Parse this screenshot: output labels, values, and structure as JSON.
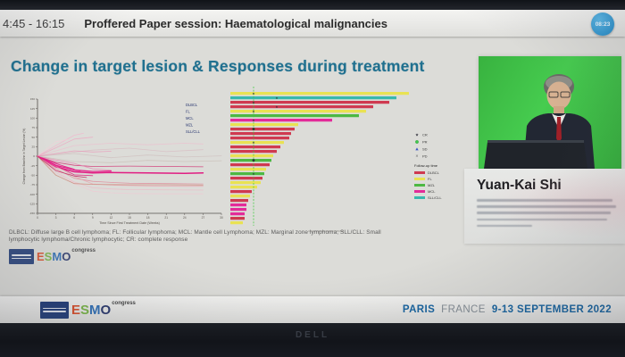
{
  "top_bar": {
    "time_range": "4:45 - 16:15",
    "session_title": "Proffered Paper session: Haematological malignancies",
    "timer_badge": "08:23"
  },
  "slide": {
    "title": "Change in target lesion & Responses during treatment",
    "footnote_line1": "DLBCL: Diffuse large B cell lymphoma; FL: Follicular lymphoma; MCL: Mantle cell Lymphoma; MZL: Marginal zone lymphoma; SLL/CLL: Small",
    "footnote_line2": "lymphocytic lymphoma/Chronic lymphocytic;   CR: complete response"
  },
  "speaker": {
    "name": "Yuan-Kai Shi"
  },
  "esmo_logo": {
    "letters": [
      "E",
      "S",
      "M",
      "O"
    ],
    "colors": [
      "#d94f2b",
      "#7ab648",
      "#2f6fb5",
      "#2c3a6e"
    ],
    "congress": "congress"
  },
  "footer": {
    "city": "PARIS",
    "country": "FRANCE",
    "dates": "9-13 SEPTEMBER 2022"
  },
  "monitor": {
    "brand": "DELL"
  },
  "chart_data": [
    {
      "type": "line",
      "name": "spider-plot-change-in-target-lesion",
      "xlabel": "Time Since First Treatment Date (Weeks)",
      "ylabel": "Change from Baseline in Target Lesion (%)",
      "xlim": [
        0,
        30
      ],
      "ylim": [
        -150,
        150
      ],
      "xticks": [
        0,
        3,
        6,
        9,
        12,
        15,
        18,
        21,
        24,
        27,
        30
      ],
      "yticks": [
        150,
        125,
        100,
        75,
        50,
        25,
        0,
        -25,
        -50,
        -75,
        -100,
        -125,
        -150
      ],
      "grid": false,
      "legend_position": "top-right",
      "legend": [
        "DLBCL",
        "FL",
        "MCL",
        "MZL",
        "SLL/CLL"
      ],
      "legend_color": "#27356f",
      "series": [
        {
          "c": "#f3b5cd",
          "o": 0.8,
          "p": [
            [
              0,
              0
            ],
            [
              3,
              28
            ],
            [
              6,
              55
            ],
            [
              7.5,
              60
            ]
          ]
        },
        {
          "c": "#efa0bf",
          "o": 0.7,
          "p": [
            [
              0,
              0
            ],
            [
              3,
              22
            ],
            [
              6,
              45
            ],
            [
              9,
              50
            ]
          ]
        },
        {
          "c": "#f0b9cc",
          "o": 0.65,
          "p": [
            [
              0,
              0
            ],
            [
              6,
              28
            ],
            [
              12,
              34
            ],
            [
              18,
              30
            ],
            [
              24,
              34
            ],
            [
              27,
              32
            ]
          ]
        },
        {
          "c": "#d9b3bd",
          "o": 0.6,
          "p": [
            [
              0,
              0
            ],
            [
              9,
              16
            ],
            [
              15,
              21
            ],
            [
              21,
              12
            ],
            [
              27,
              17
            ]
          ]
        },
        {
          "c": "#ccb7b7",
          "o": 0.6,
          "p": [
            [
              0,
              0
            ],
            [
              6,
              7
            ],
            [
              12,
              -4
            ],
            [
              18,
              3
            ],
            [
              24,
              -2
            ],
            [
              30,
              1
            ]
          ]
        },
        {
          "c": "#d23a78",
          "o": 0.9,
          "p": [
            [
              0,
              0
            ],
            [
              3,
              -16
            ],
            [
              6,
              -24
            ],
            [
              9,
              -27
            ],
            [
              15,
              -26
            ],
            [
              21,
              -27
            ],
            [
              27,
              -28
            ]
          ]
        },
        {
          "c": "#e0117d",
          "o": 0.95,
          "w": 1.5,
          "p": [
            [
              0,
              0
            ],
            [
              3,
              -28
            ],
            [
              6,
              -41
            ],
            [
              9,
              -44
            ],
            [
              12,
              -43
            ],
            [
              18,
              -44
            ],
            [
              24,
              -45
            ],
            [
              27,
              -44
            ]
          ]
        },
        {
          "c": "#e2328c",
          "o": 0.9,
          "p": [
            [
              0,
              0
            ],
            [
              6,
              -37
            ],
            [
              7,
              -39
            ]
          ]
        },
        {
          "c": "#df2486",
          "o": 0.9,
          "p": [
            [
              0,
              0
            ],
            [
              3,
              -20
            ],
            [
              6,
              -34
            ]
          ]
        },
        {
          "c": "#d81b77",
          "o": 0.85,
          "p": [
            [
              0,
              0
            ],
            [
              6,
              -49
            ],
            [
              9,
              -51
            ]
          ]
        },
        {
          "c": "#ea7fb0",
          "o": 0.8,
          "p": [
            [
              0,
              0
            ],
            [
              3,
              -10
            ],
            [
              6,
              -19
            ],
            [
              9,
              -33
            ],
            [
              12,
              -37
            ]
          ]
        },
        {
          "c": "#e08898",
          "o": 0.8,
          "p": [
            [
              0,
              0
            ],
            [
              3,
              -33
            ],
            [
              6,
              -58
            ],
            [
              9,
              -66
            ],
            [
              12,
              -69
            ],
            [
              15,
              -71
            ],
            [
              21,
              -72
            ],
            [
              27,
              -73
            ]
          ]
        },
        {
          "c": "#eaa0ad",
          "o": 0.75,
          "p": [
            [
              0,
              0
            ],
            [
              6,
              -53
            ],
            [
              9,
              -73
            ],
            [
              12,
              -76
            ],
            [
              18,
              -78
            ],
            [
              24,
              -79
            ],
            [
              27,
              -79
            ]
          ]
        },
        {
          "c": "#f0b3c4",
          "o": 0.7,
          "p": [
            [
              0,
              0
            ],
            [
              3,
              -43
            ],
            [
              6,
              -68
            ],
            [
              9,
              -83
            ],
            [
              12,
              -86
            ],
            [
              15,
              -88
            ],
            [
              27,
              -89
            ]
          ]
        },
        {
          "c": "#f3c4d2",
          "o": 0.65,
          "p": [
            [
              0,
              0
            ],
            [
              6,
              -72
            ],
            [
              9,
              -92
            ],
            [
              12,
              -96
            ],
            [
              15,
              -98
            ],
            [
              21,
              -99
            ],
            [
              27,
              -99
            ]
          ]
        },
        {
          "c": "#c4b6ae",
          "o": 0.6,
          "p": [
            [
              0,
              0
            ],
            [
              6,
              -14
            ],
            [
              12,
              -17
            ],
            [
              18,
              -11
            ],
            [
              24,
              -14
            ],
            [
              30,
              -12
            ]
          ]
        },
        {
          "c": "#ec93b8",
          "o": 0.7,
          "p": [
            [
              0,
              0
            ],
            [
              3,
              7
            ],
            [
              6,
              14
            ],
            [
              9,
              11
            ],
            [
              12,
              13
            ]
          ]
        },
        {
          "c": "#e05197",
          "o": 0.85,
          "p": [
            [
              0,
              0
            ],
            [
              3,
              -26
            ],
            [
              5,
              -30
            ]
          ]
        },
        {
          "c": "#c22a60",
          "o": 0.9,
          "p": [
            [
              0,
              0
            ],
            [
              3,
              -38
            ],
            [
              6,
              -52
            ],
            [
              8,
              -56
            ]
          ]
        },
        {
          "c": "#f6cdd9",
          "o": 0.6,
          "p": [
            [
              0,
              0
            ],
            [
              3,
              38
            ],
            [
              5,
              44
            ]
          ]
        },
        {
          "c": "#e61184",
          "o": 0.9,
          "w": 1.2,
          "p": [
            [
              0,
              0
            ],
            [
              3,
              -24
            ],
            [
              6,
              -36
            ],
            [
              9,
              -40
            ],
            [
              12,
              -39
            ]
          ]
        },
        {
          "c": "#c97b6a",
          "o": 0.7,
          "p": [
            [
              0,
              0
            ],
            [
              3,
              -50
            ],
            [
              6,
              -72
            ],
            [
              9,
              -74
            ],
            [
              15,
              -75
            ],
            [
              21,
              -75
            ],
            [
              27,
              -76
            ]
          ]
        }
      ]
    },
    {
      "type": "bar",
      "name": "swimmer-plot-duration-of-treatment",
      "orientation": "horizontal",
      "group_colors": {
        "DLBCL": "#cf3a50",
        "FL": "#e9e253",
        "MZL": "#4db843",
        "MCL": "#e32b99",
        "SLL/CLL": "#38b8ad"
      },
      "reference_line": {
        "style": "dashed",
        "color": "#3acb3a",
        "at_percent": 13
      },
      "legend_title": "Follow-up time",
      "legend_groups": [
        "DLBCL",
        "FL",
        "MZL",
        "MCL",
        "SLL/CLL"
      ],
      "marker_legend": [
        {
          "marker": "star",
          "label": "CR",
          "color": "#2e2e38"
        },
        {
          "marker": "circle",
          "label": "PR",
          "color": "#3ecb4e"
        },
        {
          "marker": "triangle",
          "label": "SD",
          "color": "#3a55c8"
        },
        {
          "marker": "x",
          "label": "PD",
          "color": "#666666"
        }
      ],
      "bars": [
        {
          "group": "FL",
          "value": 100
        },
        {
          "group": "SLL/CLL",
          "value": 93
        },
        {
          "group": "DLBCL",
          "value": 89
        },
        {
          "group": "DLBCL",
          "value": 80
        },
        {
          "group": "FL",
          "value": 76
        },
        {
          "group": "MZL",
          "value": 72
        },
        {
          "group": "MCL",
          "value": 57
        },
        {
          "group": "FL",
          "value": 38
        },
        {
          "group": "DLBCL",
          "value": 36
        },
        {
          "group": "DLBCL",
          "value": 34
        },
        {
          "group": "DLBCL",
          "value": 33
        },
        {
          "group": "FL",
          "value": 30
        },
        {
          "group": "DLBCL",
          "value": 28
        },
        {
          "group": "DLBCL",
          "value": 26
        },
        {
          "group": "FL",
          "value": 24
        },
        {
          "group": "MZL",
          "value": 23
        },
        {
          "group": "DLBCL",
          "value": 22
        },
        {
          "group": "FL",
          "value": 20
        },
        {
          "group": "MZL",
          "value": 19
        },
        {
          "group": "DLBCL",
          "value": 18
        },
        {
          "group": "FL",
          "value": 17
        },
        {
          "group": "FL",
          "value": 15
        },
        {
          "group": "DLBCL",
          "value": 12
        },
        {
          "group": "FL",
          "value": 11
        },
        {
          "group": "DLBCL",
          "value": 10
        },
        {
          "group": "MCL",
          "value": 9
        },
        {
          "group": "MCL",
          "value": 9
        },
        {
          "group": "MCL",
          "value": 8
        },
        {
          "group": "DLBCL",
          "value": 8
        },
        {
          "group": "FL",
          "value": 7
        }
      ],
      "bar_markers": [
        {
          "bar": 0,
          "at": 13,
          "type": "star"
        },
        {
          "bar": 1,
          "at": 26,
          "type": "star"
        },
        {
          "bar": 2,
          "at": 13,
          "type": "star"
        },
        {
          "bar": 3,
          "at": 26,
          "type": "star"
        },
        {
          "bar": 4,
          "at": 13,
          "type": "star"
        },
        {
          "bar": 6,
          "at": 13,
          "type": "star"
        },
        {
          "bar": 8,
          "at": 13,
          "type": "circle"
        },
        {
          "bar": 11,
          "at": 13,
          "type": "star"
        },
        {
          "bar": 15,
          "at": 13,
          "type": "circle"
        },
        {
          "bar": 18,
          "at": 13,
          "type": "star"
        }
      ]
    }
  ]
}
